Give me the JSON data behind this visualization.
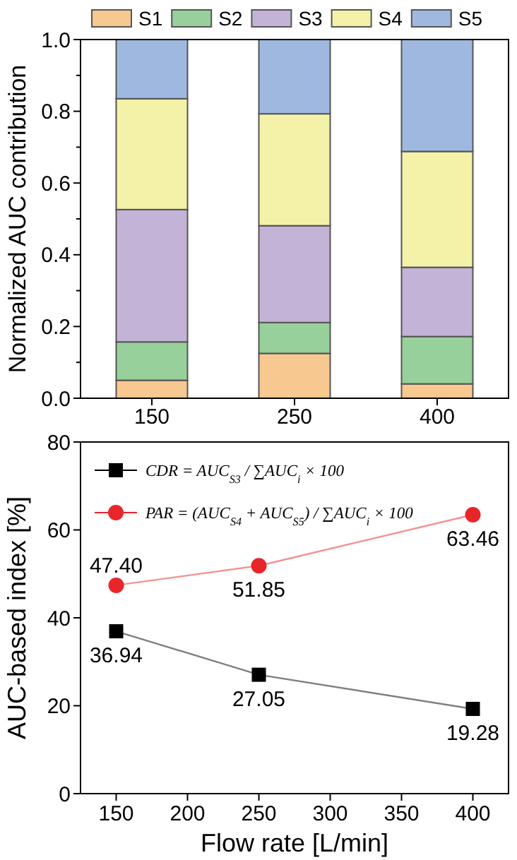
{
  "chart_data": [
    {
      "type": "bar",
      "stacked": true,
      "ylabel": "Normalized AUC contribution",
      "categories": [
        "150",
        "250",
        "400"
      ],
      "series": [
        {
          "name": "S1",
          "color": "#f8c891",
          "values": [
            0.05,
            0.125,
            0.04
          ]
        },
        {
          "name": "S2",
          "color": "#97d09a",
          "values": [
            0.107,
            0.086,
            0.132
          ]
        },
        {
          "name": "S3",
          "color": "#c3b3d6",
          "values": [
            0.369,
            0.27,
            0.193
          ]
        },
        {
          "name": "S4",
          "color": "#f4f2a8",
          "values": [
            0.309,
            0.312,
            0.323
          ]
        },
        {
          "name": "S5",
          "color": "#9fb8e0",
          "values": [
            0.165,
            0.207,
            0.312
          ]
        }
      ],
      "ylim": [
        0,
        1
      ],
      "yticks": [
        {
          "value": 0,
          "label": "0.0"
        },
        {
          "value": 0.1,
          "label": null
        },
        {
          "value": 0.2,
          "label": "0.2"
        },
        {
          "value": 0.3,
          "label": null
        },
        {
          "value": 0.4,
          "label": "0.4"
        },
        {
          "value": 0.5,
          "label": null
        },
        {
          "value": 0.6,
          "label": "0.6"
        },
        {
          "value": 0.7,
          "label": null
        },
        {
          "value": 0.8,
          "label": "0.8"
        },
        {
          "value": 0.9,
          "label": null
        },
        {
          "value": 1,
          "label": "1.0"
        }
      ],
      "legend": "top",
      "grid": false
    },
    {
      "type": "line",
      "xlabel": "Flow rate [L/min]",
      "ylabel": "AUC-based index [%]",
      "x": [
        150,
        250,
        400
      ],
      "series": [
        {
          "name": "CDR = AUC$_{S3}$ / ∑AUC$_{i}$ × 100",
          "color": "#000000",
          "marker": "square",
          "values": [
            36.94,
            27.05,
            19.28
          ],
          "value_labels": [
            "36.94",
            "27.05",
            "19.28"
          ]
        },
        {
          "name": "PAR = (AUC$_{S4}$ + AUC$_{S5}$) / ∑AUC$_{i}$ × 100",
          "color": "#e8262a",
          "marker": "circle",
          "values": [
            47.4,
            51.85,
            63.46
          ],
          "value_labels": [
            "47.40",
            "51.85",
            "63.46"
          ]
        }
      ],
      "xlim": [
        125,
        425
      ],
      "xticks": [
        150,
        200,
        250,
        300,
        350,
        400
      ],
      "ylim": [
        0,
        80
      ],
      "yticks": [
        0,
        20,
        40,
        60,
        80
      ],
      "legend": "top left",
      "grid": false
    }
  ]
}
